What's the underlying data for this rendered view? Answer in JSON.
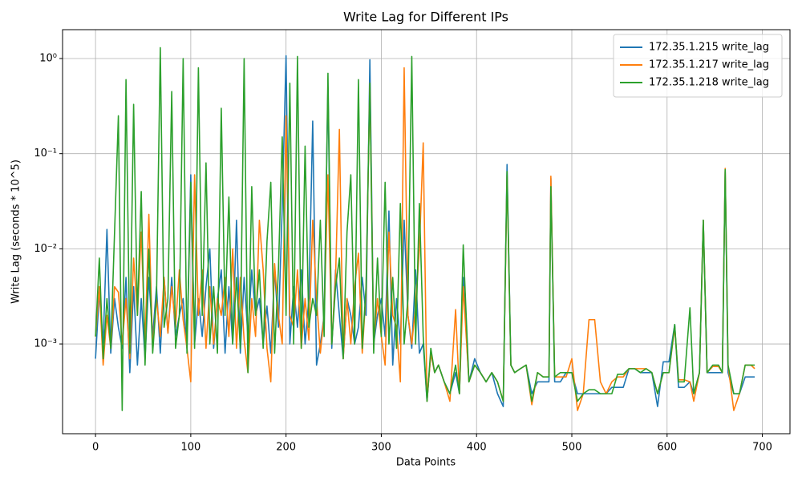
{
  "chart_data": {
    "type": "line",
    "title": "Write Lag for Different IPs",
    "x_label": "Data Points",
    "y_label": "Write Lag (seconds * 10^5)",
    "log_y": true,
    "grid": true,
    "legend": "upper right",
    "xlim": [
      -34.6,
      729
    ],
    "ylim": [
      0.000114,
      2.01
    ],
    "xticks": [
      0,
      100,
      200,
      300,
      400,
      500,
      600,
      700
    ],
    "yticks": [
      {
        "value": 0.001,
        "label": "10⁻³"
      },
      {
        "value": 0.01,
        "label": "10⁻²"
      },
      {
        "value": 0.1,
        "label": "10⁻¹"
      },
      {
        "value": 1,
        "label": "10⁰"
      }
    ],
    "x": [
      0,
      4,
      8,
      12,
      16,
      20,
      24,
      28,
      32,
      36,
      40,
      44,
      48,
      52,
      56,
      60,
      64,
      68,
      72,
      76,
      80,
      84,
      88,
      92,
      96,
      100,
      104,
      108,
      112,
      116,
      120,
      124,
      128,
      132,
      136,
      140,
      144,
      148,
      152,
      156,
      160,
      164,
      168,
      172,
      176,
      180,
      184,
      188,
      192,
      196,
      200,
      204,
      208,
      212,
      216,
      220,
      224,
      228,
      232,
      236,
      240,
      244,
      248,
      252,
      256,
      260,
      264,
      268,
      272,
      276,
      280,
      284,
      288,
      292,
      296,
      300,
      304,
      308,
      312,
      316,
      320,
      324,
      328,
      332,
      336,
      340,
      344,
      348,
      352,
      356,
      360,
      366,
      372,
      378,
      382,
      386,
      392,
      398,
      404,
      410,
      416,
      422,
      428,
      432,
      436,
      440,
      446,
      452,
      458,
      464,
      470,
      476,
      478,
      482,
      488,
      494,
      500,
      506,
      512,
      518,
      524,
      530,
      536,
      542,
      548,
      554,
      560,
      566,
      572,
      578,
      584,
      590,
      596,
      602,
      608,
      612,
      618,
      624,
      628,
      634,
      638,
      642,
      648,
      654,
      658,
      661,
      664,
      670,
      676,
      682,
      688,
      692
    ],
    "series": [
      {
        "name": "172.35.1.215 write_lag",
        "color": "#1f77b4",
        "values": [
          0.0007,
          0.0035,
          0.001,
          0.016,
          0.0008,
          0.003,
          0.0015,
          0.0009,
          0.005,
          0.0005,
          0.004,
          0.0006,
          0.003,
          0.0007,
          0.005,
          0.0012,
          0.004,
          0.0008,
          0.005,
          0.0013,
          0.005,
          0.0012,
          0.002,
          0.003,
          0.0009,
          0.06,
          0.001,
          0.003,
          0.0012,
          0.004,
          0.01,
          0.0009,
          0.003,
          0.006,
          0.0008,
          0.004,
          0.001,
          0.02,
          0.0008,
          0.005,
          0.0012,
          0.006,
          0.002,
          0.003,
          0.001,
          0.0025,
          0.0008,
          0.006,
          0.0015,
          0.027,
          1.07,
          0.001,
          0.004,
          0.0015,
          0.006,
          0.001,
          0.003,
          0.22,
          0.0006,
          0.001,
          0.002,
          0.5,
          0.0009,
          0.006,
          0.002,
          0.0007,
          0.003,
          0.002,
          0.001,
          0.0015,
          0.005,
          0.002,
          0.97,
          0.001,
          0.002,
          0.003,
          0.0012,
          0.025,
          0.0006,
          0.003,
          0.001,
          0.02,
          0.002,
          0.0009,
          0.006,
          0.0008,
          0.001,
          0.00025,
          0.0008,
          0.0005,
          0.0006,
          0.0004,
          0.0003,
          0.0005,
          0.0003,
          0.005,
          0.0004,
          0.0007,
          0.0005,
          0.0004,
          0.0005,
          0.0003,
          0.00022,
          0.077,
          0.0006,
          0.0005,
          0.00055,
          0.0006,
          0.0003,
          0.0004,
          0.0004,
          0.0004,
          0.055,
          0.0004,
          0.0004,
          0.0005,
          0.0005,
          0.0003,
          0.0003,
          0.0003,
          0.0003,
          0.0003,
          0.0003,
          0.00035,
          0.00035,
          0.00035,
          0.00055,
          0.00055,
          0.0005,
          0.0005,
          0.0005,
          0.00022,
          0.00065,
          0.00065,
          0.0016,
          0.00035,
          0.00035,
          0.0004,
          0.0003,
          0.0005,
          0.02,
          0.0005,
          0.0005,
          0.0005,
          0.0005,
          0.065,
          0.0005,
          0.0003,
          0.0003,
          0.00045,
          0.00045,
          0.00045
        ]
      },
      {
        "name": "172.35.1.217 write_lag",
        "color": "#ff7f0e",
        "values": [
          0.0012,
          0.004,
          0.0006,
          0.002,
          0.0009,
          0.004,
          0.0035,
          0.001,
          0.003,
          0.0007,
          0.008,
          0.002,
          0.015,
          0.001,
          0.023,
          0.0009,
          0.003,
          0.0012,
          0.005,
          0.0013,
          0.004,
          0.0015,
          0.006,
          0.0018,
          0.0009,
          0.0004,
          0.06,
          0.002,
          0.006,
          0.0009,
          0.004,
          0.001,
          0.003,
          0.002,
          0.005,
          0.0012,
          0.01,
          0.0009,
          0.005,
          0.0011,
          0.0005,
          0.003,
          0.0012,
          0.02,
          0.006,
          0.0009,
          0.0004,
          0.007,
          0.002,
          0.001,
          0.25,
          0.002,
          0.0015,
          0.006,
          0.0009,
          0.003,
          0.0011,
          0.02,
          0.003,
          0.0008,
          0.002,
          0.06,
          0.001,
          0.005,
          0.18,
          0.0007,
          0.003,
          0.001,
          0.004,
          0.009,
          0.0008,
          0.0035,
          0.55,
          0.001,
          0.003,
          0.0012,
          0.0006,
          0.015,
          0.002,
          0.0015,
          0.0004,
          0.8,
          0.002,
          0.001,
          0.0025,
          0.01,
          0.13,
          0.00025,
          0.0008,
          0.0005,
          0.0006,
          0.0004,
          0.00025,
          0.0023,
          0.0003,
          0.004,
          0.0004,
          0.0006,
          0.0005,
          0.0004,
          0.0005,
          0.0004,
          0.00025,
          0.06,
          0.0006,
          0.0005,
          0.00055,
          0.0006,
          0.00023,
          0.0005,
          0.00045,
          0.00045,
          0.058,
          0.00045,
          0.00045,
          0.00045,
          0.0007,
          0.0002,
          0.0003,
          0.0018,
          0.0018,
          0.0004,
          0.0003,
          0.0004,
          0.00045,
          0.00045,
          0.00055,
          0.00055,
          0.00055,
          0.00055,
          0.0005,
          0.0003,
          0.0005,
          0.0005,
          0.0015,
          0.00042,
          0.00042,
          0.0004,
          0.00025,
          0.0005,
          0.02,
          0.0005,
          0.00058,
          0.00058,
          0.0005,
          0.07,
          0.0006,
          0.0002,
          0.0003,
          0.0006,
          0.0006,
          0.00055
        ]
      },
      {
        "name": "172.35.1.218 write_lag",
        "color": "#2ca02c",
        "values": [
          0.0012,
          0.008,
          0.0007,
          0.003,
          0.0009,
          0.015,
          0.25,
          0.0002,
          0.6,
          0.0008,
          0.33,
          0.002,
          0.04,
          0.0006,
          0.01,
          0.0008,
          0.003,
          1.3,
          0.0015,
          0.003,
          0.45,
          0.0009,
          0.002,
          1.0,
          0.0008,
          0.05,
          0.0009,
          0.8,
          0.002,
          0.08,
          0.001,
          0.004,
          0.0008,
          0.3,
          0.002,
          0.035,
          0.001,
          0.005,
          0.0009,
          1.0,
          0.0005,
          0.045,
          0.002,
          0.006,
          0.0009,
          0.012,
          0.05,
          0.0008,
          0.006,
          0.15,
          0.002,
          0.55,
          0.001,
          1.05,
          0.0009,
          0.12,
          0.0015,
          0.003,
          0.002,
          0.02,
          0.0012,
          0.7,
          0.001,
          0.004,
          0.008,
          0.0007,
          0.015,
          0.06,
          0.001,
          0.6,
          0.0009,
          0.004,
          0.55,
          0.0008,
          0.008,
          0.0012,
          0.05,
          0.001,
          0.005,
          0.0009,
          0.03,
          0.001,
          0.003,
          1.05,
          0.001,
          0.03,
          0.0012,
          0.00025,
          0.0009,
          0.0005,
          0.0006,
          0.0004,
          0.0003,
          0.0006,
          0.0003,
          0.011,
          0.0004,
          0.0006,
          0.0005,
          0.0004,
          0.0005,
          0.0004,
          0.00025,
          0.065,
          0.0006,
          0.0005,
          0.00055,
          0.0006,
          0.00025,
          0.0005,
          0.00045,
          0.00045,
          0.045,
          0.00045,
          0.0005,
          0.0005,
          0.0005,
          0.00025,
          0.0003,
          0.00033,
          0.00033,
          0.0003,
          0.0003,
          0.0003,
          0.00048,
          0.00048,
          0.00055,
          0.00055,
          0.0005,
          0.00055,
          0.0005,
          0.0003,
          0.0005,
          0.0005,
          0.0016,
          0.0004,
          0.0004,
          0.0024,
          0.0003,
          0.0005,
          0.02,
          0.0005,
          0.0006,
          0.0006,
          0.0005,
          0.068,
          0.0006,
          0.0003,
          0.0003,
          0.0006,
          0.0006,
          0.0006
        ]
      }
    ]
  }
}
